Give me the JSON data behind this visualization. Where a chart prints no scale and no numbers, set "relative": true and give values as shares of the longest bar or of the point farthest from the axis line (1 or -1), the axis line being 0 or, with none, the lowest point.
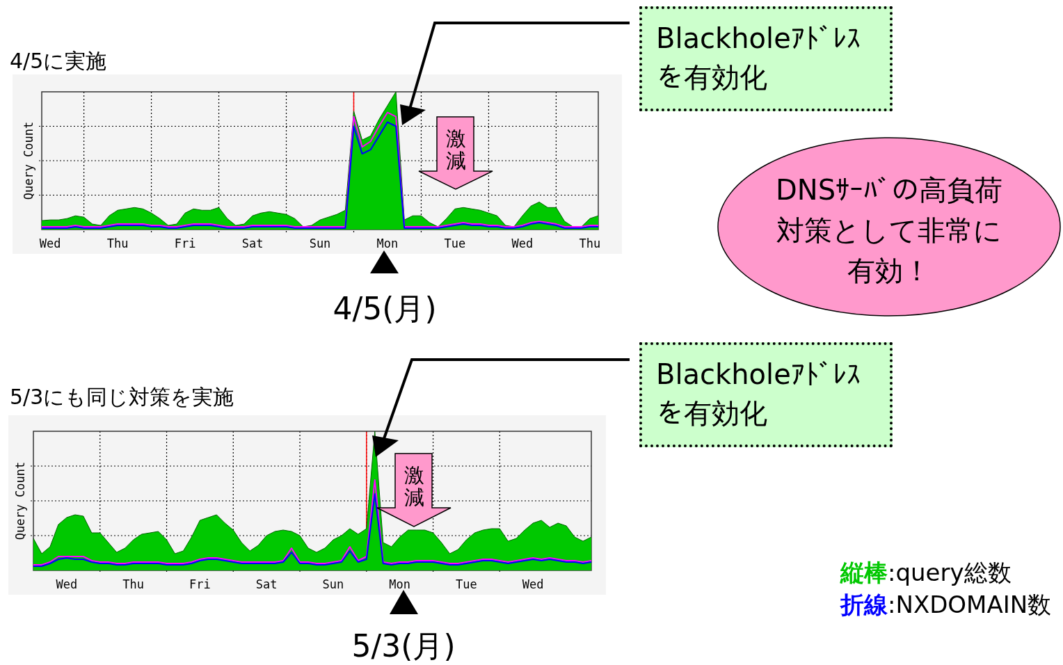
{
  "chart_data": [
    {
      "type": "line",
      "title": "4/5に実施",
      "ylabel": "Query Count",
      "relative": true,
      "grid": true,
      "categories": [
        null,
        "Wed",
        null,
        null,
        null,
        null,
        null,
        null,
        null,
        "Thu",
        null,
        null,
        null,
        null,
        null,
        null,
        null,
        "Fri",
        null,
        null,
        null,
        null,
        null,
        null,
        null,
        "Sat",
        null,
        null,
        null,
        null,
        null,
        null,
        null,
        "Sun",
        null,
        null,
        null,
        null,
        null,
        null,
        null,
        "Mon",
        null,
        null,
        null,
        null,
        null,
        null,
        null,
        "Tue",
        null,
        null,
        null,
        null,
        null,
        null,
        null,
        "Wed",
        null,
        null,
        null,
        null,
        null,
        null,
        null,
        "Thu",
        null
      ],
      "series": [
        {
          "type": "area",
          "color": "#00c800",
          "values": [
            0.065,
            0.07,
            0.07,
            0.08,
            0.1,
            0.09,
            0.04,
            0.03,
            0.1,
            0.14,
            0.15,
            0.16,
            0.15,
            0.12,
            0.08,
            0.03,
            0.04,
            0.12,
            0.15,
            0.14,
            0.14,
            0.16,
            0.08,
            0.03,
            0.04,
            0.1,
            0.12,
            0.13,
            0.12,
            0.11,
            0.08,
            0.02,
            0.03,
            0.07,
            0.09,
            0.11,
            0.14,
            0.86,
            0.65,
            0.68,
            0.8,
            0.9,
            1.0,
            0.07,
            0.1,
            0.1,
            0.05,
            0.02,
            0.08,
            0.15,
            0.16,
            0.15,
            0.14,
            0.12,
            0.1,
            0.03,
            0.02,
            0.1,
            0.17,
            0.2,
            0.16,
            0.16,
            0.06,
            0.02,
            0.02,
            0.08,
            0.1
          ]
        },
        {
          "type": "line",
          "color": "#ff00ff",
          "values": [
            0.02,
            0.02,
            0.02,
            0.02,
            0.03,
            0.02,
            0.02,
            0.02,
            0.03,
            0.04,
            0.04,
            0.04,
            0.04,
            0.03,
            0.03,
            0.02,
            0.02,
            0.03,
            0.04,
            0.04,
            0.04,
            0.03,
            0.02,
            0.02,
            0.02,
            0.03,
            0.03,
            0.03,
            0.03,
            0.03,
            0.02,
            0.02,
            0.02,
            0.02,
            0.02,
            0.02,
            0.02,
            0.82,
            0.6,
            0.64,
            0.75,
            0.85,
            0.82,
            0.02,
            0.02,
            0.02,
            0.02,
            0.02,
            0.03,
            0.04,
            0.05,
            0.04,
            0.04,
            0.03,
            0.03,
            0.02,
            0.02,
            0.03,
            0.05,
            0.06,
            0.05,
            0.04,
            0.02,
            0.02,
            0.02,
            0.03,
            0.03
          ]
        },
        {
          "type": "line",
          "color": "#0000ff",
          "values": [
            0.01,
            0.01,
            0.01,
            0.01,
            0.02,
            0.01,
            0.01,
            0.01,
            0.02,
            0.03,
            0.03,
            0.03,
            0.03,
            0.02,
            0.02,
            0.01,
            0.01,
            0.02,
            0.03,
            0.03,
            0.03,
            0.02,
            0.01,
            0.01,
            0.01,
            0.02,
            0.02,
            0.02,
            0.02,
            0.02,
            0.01,
            0.01,
            0.01,
            0.01,
            0.01,
            0.01,
            0.01,
            0.75,
            0.55,
            0.58,
            0.68,
            0.78,
            0.75,
            0.01,
            0.01,
            0.01,
            0.01,
            0.01,
            0.02,
            0.03,
            0.04,
            0.03,
            0.03,
            0.02,
            0.02,
            0.01,
            0.01,
            0.02,
            0.04,
            0.05,
            0.04,
            0.03,
            0.01,
            0.01,
            0.01,
            0.02,
            0.02
          ]
        }
      ],
      "annotations": [
        "Blackholeｱﾄﾞﾚｽを有効化",
        "激減",
        "4/5(月)",
        "DNSｻｰﾊﾞの高負荷対策として非常に有効！"
      ]
    },
    {
      "type": "line",
      "title": "5/3にも同じ対策を実施",
      "ylabel": "Query Count",
      "relative": true,
      "grid": true,
      "legend": "bottom right",
      "categories": [
        null,
        null,
        null,
        null,
        "Wed",
        null,
        null,
        null,
        null,
        null,
        null,
        null,
        "Thu",
        null,
        null,
        null,
        null,
        null,
        null,
        null,
        "Fri",
        null,
        null,
        null,
        null,
        null,
        null,
        null,
        "Sat",
        null,
        null,
        null,
        null,
        null,
        null,
        null,
        "Sun",
        null,
        null,
        null,
        null,
        null,
        null,
        null,
        "Mon",
        null,
        null,
        null,
        null,
        null,
        null,
        null,
        "Tue",
        null,
        null,
        null,
        null,
        null,
        null,
        null,
        "Wed",
        null,
        null,
        null,
        null,
        null,
        null,
        null
      ],
      "series": [
        {
          "type": "area",
          "name": "縦棒:query総数",
          "color": "#00c800",
          "values": [
            0.23,
            0.12,
            0.17,
            0.33,
            0.38,
            0.4,
            0.39,
            0.27,
            0.27,
            0.2,
            0.13,
            0.16,
            0.22,
            0.26,
            0.27,
            0.28,
            0.22,
            0.12,
            0.14,
            0.24,
            0.36,
            0.38,
            0.4,
            0.34,
            0.29,
            0.2,
            0.14,
            0.18,
            0.25,
            0.28,
            0.29,
            0.28,
            0.25,
            0.16,
            0.13,
            0.16,
            0.22,
            0.25,
            0.3,
            0.26,
            0.3,
            1.0,
            0.2,
            0.17,
            0.24,
            0.29,
            0.29,
            0.29,
            0.27,
            0.2,
            0.12,
            0.15,
            0.22,
            0.27,
            0.29,
            0.3,
            0.3,
            0.21,
            0.23,
            0.29,
            0.34,
            0.36,
            0.31,
            0.34,
            0.32,
            0.24,
            0.21,
            0.24
          ]
        },
        {
          "type": "line",
          "color": "#ff00ff",
          "values": [
            0.04,
            0.04,
            0.06,
            0.1,
            0.1,
            0.1,
            0.1,
            0.07,
            0.06,
            0.06,
            0.05,
            0.05,
            0.06,
            0.06,
            0.06,
            0.06,
            0.05,
            0.05,
            0.05,
            0.06,
            0.08,
            0.09,
            0.09,
            0.08,
            0.07,
            0.06,
            0.06,
            0.06,
            0.06,
            0.06,
            0.07,
            0.16,
            0.06,
            0.06,
            0.05,
            0.05,
            0.06,
            0.07,
            0.17,
            0.07,
            0.1,
            0.65,
            0.06,
            0.05,
            0.06,
            0.06,
            0.07,
            0.07,
            0.07,
            0.06,
            0.05,
            0.05,
            0.06,
            0.07,
            0.08,
            0.08,
            0.07,
            0.06,
            0.07,
            0.08,
            0.09,
            0.08,
            0.09,
            0.08,
            0.07,
            0.07,
            0.06,
            0.07
          ]
        },
        {
          "type": "line",
          "name": "折線:NXDOMAIN数",
          "color": "#0000ff",
          "values": [
            0.03,
            0.03,
            0.05,
            0.08,
            0.09,
            0.08,
            0.08,
            0.06,
            0.05,
            0.05,
            0.04,
            0.04,
            0.05,
            0.05,
            0.05,
            0.05,
            0.04,
            0.04,
            0.04,
            0.05,
            0.07,
            0.08,
            0.08,
            0.07,
            0.06,
            0.05,
            0.05,
            0.05,
            0.05,
            0.05,
            0.06,
            0.13,
            0.05,
            0.05,
            0.04,
            0.04,
            0.05,
            0.06,
            0.14,
            0.06,
            0.08,
            0.55,
            0.05,
            0.04,
            0.05,
            0.05,
            0.06,
            0.06,
            0.06,
            0.05,
            0.04,
            0.04,
            0.05,
            0.06,
            0.07,
            0.07,
            0.06,
            0.05,
            0.06,
            0.07,
            0.08,
            0.07,
            0.08,
            0.07,
            0.06,
            0.06,
            0.05,
            0.06
          ]
        }
      ],
      "annotations": [
        "Blackholeｱﾄﾞﾚｽを有効化",
        "激減",
        "5/3(月)"
      ]
    }
  ]
}
